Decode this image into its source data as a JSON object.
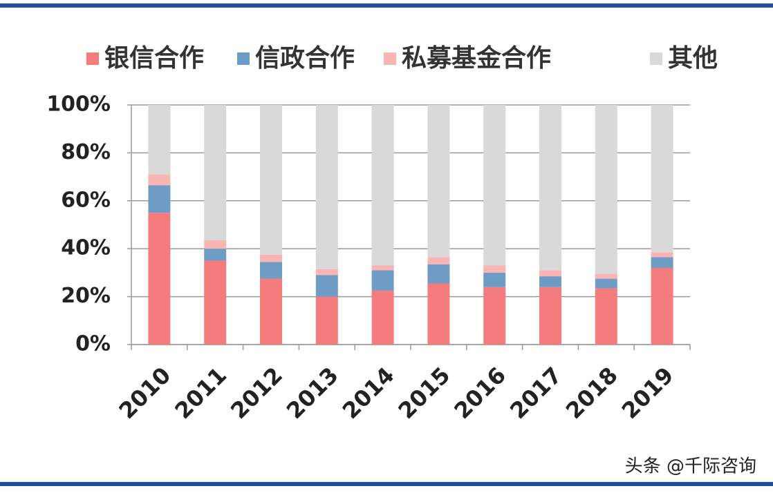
{
  "chart_data": {
    "type": "stacked_bar",
    "categories": [
      "2010",
      "2011",
      "2012",
      "2013",
      "2014",
      "2015",
      "2016",
      "2017",
      "2018",
      "2019"
    ],
    "series": [
      {
        "name": "银信合作",
        "color": "#f47c7c",
        "values": [
          55,
          35,
          27.5,
          20,
          22.5,
          25.5,
          24,
          24,
          23.5,
          32
        ]
      },
      {
        "name": "信政合作",
        "color": "#6f9cc5",
        "values": [
          11.5,
          5,
          7,
          9,
          8.5,
          8,
          6,
          4.5,
          4,
          4.5
        ]
      },
      {
        "name": "私募基金合作",
        "color": "#f9b4b4",
        "values": [
          4.5,
          3.5,
          3,
          2.5,
          2,
          3,
          3,
          2.5,
          2,
          2
        ]
      },
      {
        "name": "其他",
        "color": "#d9d9d9",
        "values": [
          29,
          56.5,
          62.5,
          68.5,
          67,
          63.5,
          67,
          69,
          70.5,
          61.5
        ]
      }
    ],
    "ylim": [
      0,
      100
    ],
    "yticks": [
      {
        "value": 0,
        "label": "0%"
      },
      {
        "value": 20,
        "label": "20%"
      },
      {
        "value": 40,
        "label": "40%"
      },
      {
        "value": 60,
        "label": "60%"
      },
      {
        "value": 80,
        "label": "80%"
      },
      {
        "value": 100,
        "label": "100%"
      }
    ],
    "grid": true
  },
  "watermark": "头条 @千际咨询"
}
